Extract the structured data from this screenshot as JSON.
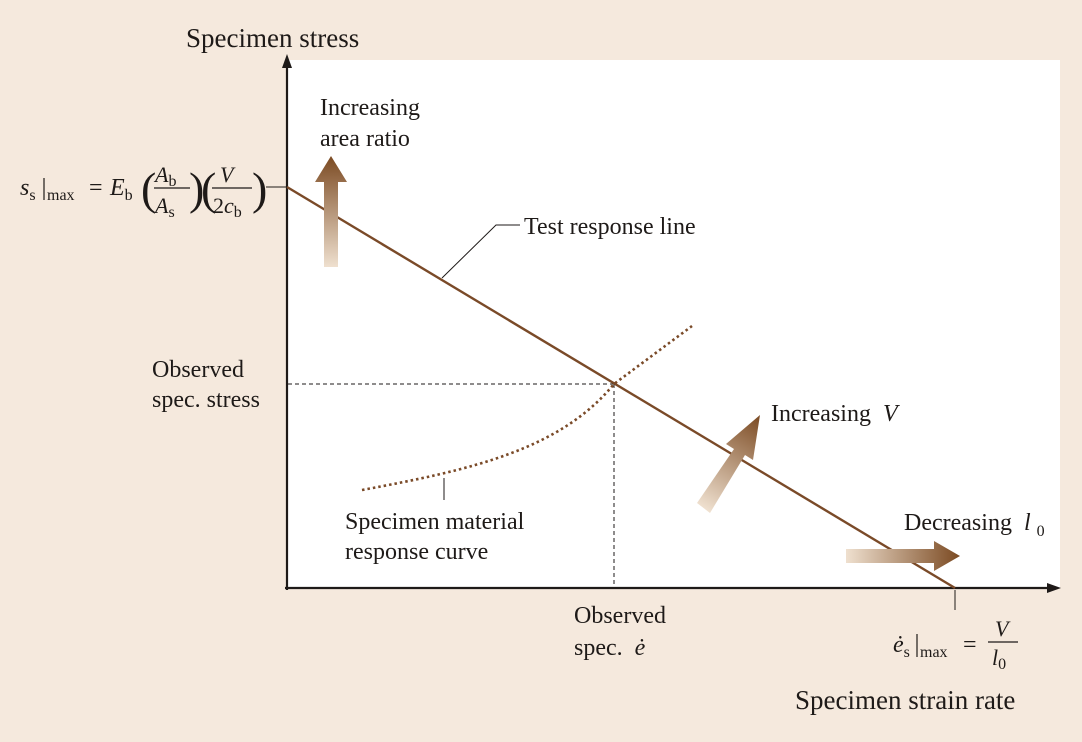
{
  "colors": {
    "background": "#f5e9dd",
    "plot_area": "#ffffff",
    "response_line": "#7a4a28",
    "material_curve": "#7a4a28",
    "axis": "#1e1a18",
    "arrow_dark": "#7b4a22",
    "arrow_light": "#efe0cf"
  },
  "axes": {
    "y_title": "Specimen stress",
    "x_title": "Specimen strain rate"
  },
  "labels": {
    "increasing_area_ratio": [
      "Increasing",
      "area ratio"
    ],
    "test_response_line": "Test response line",
    "observed_stress": [
      "Observed",
      "spec. stress"
    ],
    "increasing_v": {
      "text": "Increasing",
      "var": "V"
    },
    "material_curve": [
      "Specimen material",
      "response curve"
    ],
    "decreasing_l0": {
      "text": "Decreasing",
      "var": "l",
      "sub": "0"
    },
    "observed_rate": {
      "line1": "Observed",
      "line2": "spec.",
      "var": "ė"
    }
  },
  "equations": {
    "stress_max": {
      "lhs_var": "s",
      "lhs_sub": "s",
      "lhs_bar_sub": "max",
      "equals": "=",
      "coef_var": "E",
      "coef_sub": "b",
      "frac1": {
        "num_var": "A",
        "num_sub": "b",
        "den_var": "A",
        "den_sub": "s"
      },
      "frac2": {
        "num_var": "V",
        "den_pre": "2",
        "den_var": "c",
        "den_sub": "b"
      }
    },
    "rate_max": {
      "lhs_var": "ė",
      "lhs_sub": "s",
      "lhs_bar_sub": "max",
      "equals": "=",
      "num_var": "V",
      "den_var": "l",
      "den_sub": "0"
    }
  },
  "icons": [
    "up-arrow-icon",
    "diagonal-arrow-icon",
    "right-arrow-icon"
  ]
}
